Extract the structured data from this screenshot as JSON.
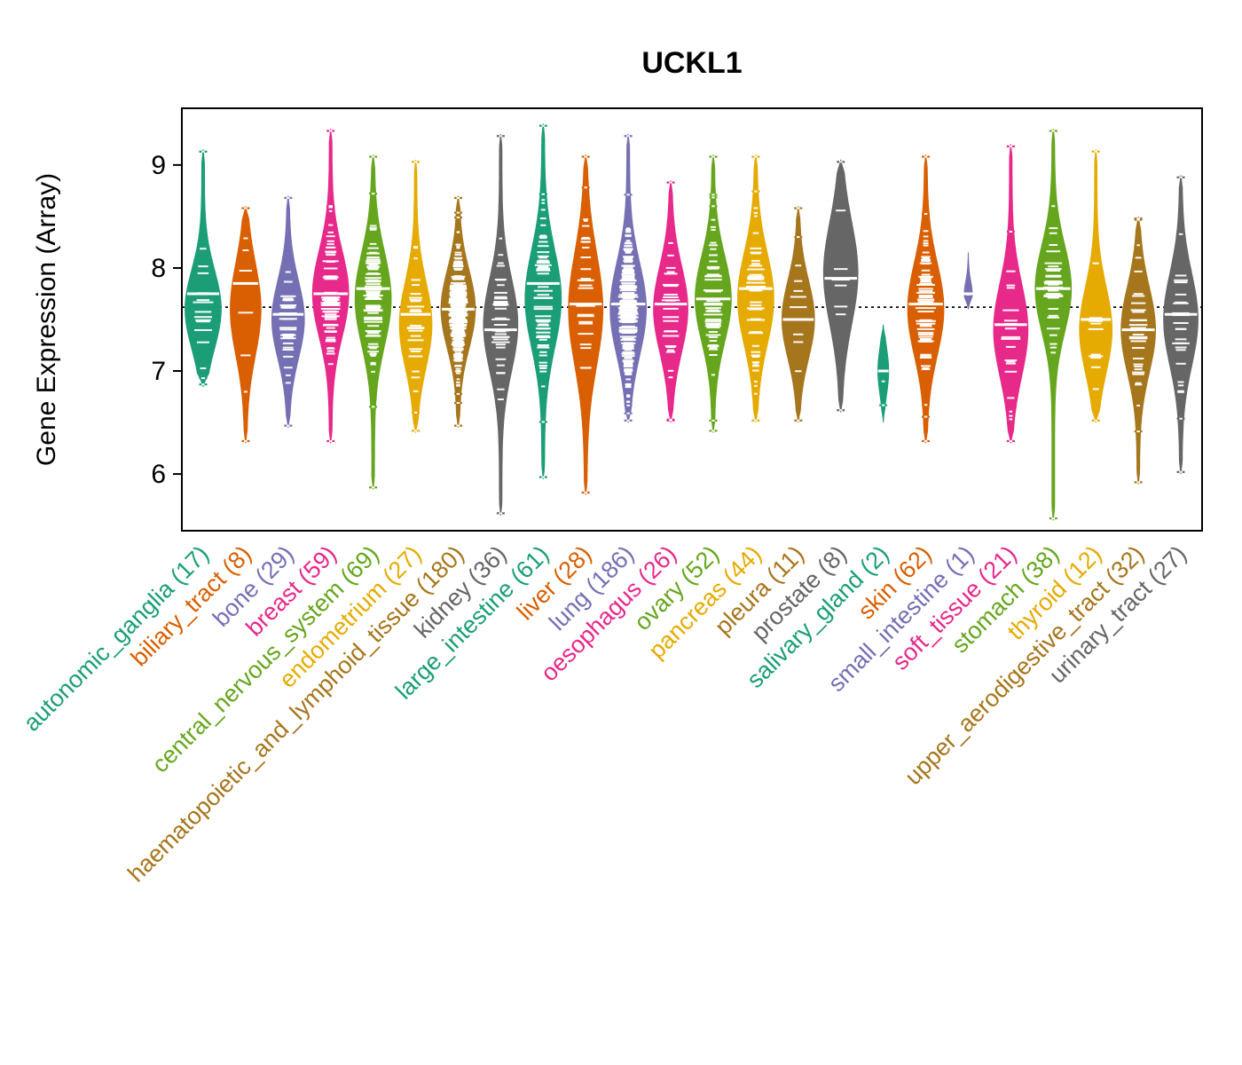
{
  "chart_data": {
    "type": "violin",
    "title": "UCKL1",
    "ylabel": "Gene Expression (Array)",
    "yticks": [
      6,
      7,
      8,
      9
    ],
    "ylim": [
      5.45,
      9.55
    ],
    "reference_line": 7.62,
    "grid": false,
    "legend": "none",
    "palette": [
      "#1B9E77",
      "#D95F02",
      "#7570B3",
      "#E7298A",
      "#66A61E",
      "#E6AB02",
      "#A6761D",
      "#666666"
    ],
    "categories": [
      {
        "label": "autonomic_ganglia",
        "n": 17,
        "color": "#1B9E77",
        "min": 6.85,
        "max": 9.15,
        "mode": 7.6,
        "spread": 0.38,
        "median": 7.75,
        "width": 1.0
      },
      {
        "label": "biliary_tract",
        "n": 8,
        "color": "#D95F02",
        "min": 6.3,
        "max": 8.6,
        "mode": 7.6,
        "spread": 0.45,
        "median": 7.85,
        "width": 0.85
      },
      {
        "label": "bone",
        "n": 29,
        "color": "#7570B3",
        "min": 6.45,
        "max": 8.7,
        "mode": 7.5,
        "spread": 0.38,
        "median": 7.55,
        "width": 0.9
      },
      {
        "label": "breast",
        "n": 59,
        "color": "#E7298A",
        "min": 6.3,
        "max": 9.35,
        "mode": 7.75,
        "spread": 0.42,
        "median": 7.75,
        "width": 1.0
      },
      {
        "label": "central_nervous_system",
        "n": 69,
        "color": "#66A61E",
        "min": 5.85,
        "max": 9.1,
        "mode": 7.7,
        "spread": 0.45,
        "median": 7.8,
        "width": 1.0
      },
      {
        "label": "endometrium",
        "n": 27,
        "color": "#E6AB02",
        "min": 6.4,
        "max": 9.05,
        "mode": 7.45,
        "spread": 0.42,
        "median": 7.55,
        "width": 0.9
      },
      {
        "label": "haematopoietic_and_lymphoid_tissue",
        "n": 180,
        "color": "#A6761D",
        "min": 6.45,
        "max": 8.7,
        "mode": 7.6,
        "spread": 0.38,
        "median": 7.6,
        "width": 0.95
      },
      {
        "label": "kidney",
        "n": 36,
        "color": "#666666",
        "min": 5.6,
        "max": 9.3,
        "mode": 7.45,
        "spread": 0.45,
        "median": 7.4,
        "width": 0.95
      },
      {
        "label": "large_intestine",
        "n": 61,
        "color": "#1B9E77",
        "min": 5.95,
        "max": 9.4,
        "mode": 7.7,
        "spread": 0.48,
        "median": 7.85,
        "width": 1.0
      },
      {
        "label": "liver",
        "n": 28,
        "color": "#D95F02",
        "min": 5.8,
        "max": 9.1,
        "mode": 7.6,
        "spread": 0.55,
        "median": 7.65,
        "width": 0.95
      },
      {
        "label": "lung",
        "n": 186,
        "color": "#7570B3",
        "min": 6.5,
        "max": 9.3,
        "mode": 7.6,
        "spread": 0.45,
        "median": 7.65,
        "width": 1.0
      },
      {
        "label": "oesophagus",
        "n": 26,
        "color": "#E7298A",
        "min": 6.5,
        "max": 8.85,
        "mode": 7.6,
        "spread": 0.42,
        "median": 7.65,
        "width": 0.95
      },
      {
        "label": "ovary",
        "n": 52,
        "color": "#66A61E",
        "min": 6.4,
        "max": 9.1,
        "mode": 7.7,
        "spread": 0.42,
        "median": 7.7,
        "width": 1.0
      },
      {
        "label": "pancreas",
        "n": 44,
        "color": "#E6AB02",
        "min": 6.5,
        "max": 9.1,
        "mode": 7.7,
        "spread": 0.45,
        "median": 7.8,
        "width": 1.0
      },
      {
        "label": "pleura",
        "n": 11,
        "color": "#A6761D",
        "min": 6.5,
        "max": 8.6,
        "mode": 7.5,
        "spread": 0.38,
        "median": 7.5,
        "width": 0.9
      },
      {
        "label": "prostate",
        "n": 8,
        "color": "#666666",
        "min": 6.6,
        "max": 9.05,
        "mode": 7.95,
        "spread": 0.5,
        "median": 7.9,
        "width": 0.95
      },
      {
        "label": "salivary_gland",
        "n": 2,
        "color": "#1B9E77",
        "min": 6.5,
        "max": 7.45,
        "mode": 7.0,
        "spread": 0.22,
        "median": 7.0,
        "width": 0.3
      },
      {
        "label": "skin",
        "n": 62,
        "color": "#D95F02",
        "min": 6.3,
        "max": 9.1,
        "mode": 7.6,
        "spread": 0.45,
        "median": 7.65,
        "width": 1.0
      },
      {
        "label": "small_intestine",
        "n": 1,
        "color": "#7570B3",
        "min": 7.6,
        "max": 8.15,
        "mode": 7.75,
        "spread": 0.12,
        "median": 7.75,
        "width": 0.22
      },
      {
        "label": "soft_tissue",
        "n": 21,
        "color": "#E7298A",
        "min": 6.3,
        "max": 9.2,
        "mode": 7.4,
        "spread": 0.45,
        "median": 7.45,
        "width": 0.95
      },
      {
        "label": "stomach",
        "n": 38,
        "color": "#66A61E",
        "min": 5.55,
        "max": 9.35,
        "mode": 7.8,
        "spread": 0.42,
        "median": 7.8,
        "width": 1.0
      },
      {
        "label": "thyroid",
        "n": 12,
        "color": "#E6AB02",
        "min": 6.5,
        "max": 9.15,
        "mode": 7.4,
        "spread": 0.42,
        "median": 7.5,
        "width": 0.9
      },
      {
        "label": "upper_aerodigestive_tract",
        "n": 32,
        "color": "#A6761D",
        "min": 5.9,
        "max": 8.5,
        "mode": 7.4,
        "spread": 0.42,
        "median": 7.4,
        "width": 0.95
      },
      {
        "label": "urinary_tract",
        "n": 27,
        "color": "#666666",
        "min": 6.0,
        "max": 8.9,
        "mode": 7.5,
        "spread": 0.45,
        "median": 7.55,
        "width": 0.95
      }
    ]
  }
}
